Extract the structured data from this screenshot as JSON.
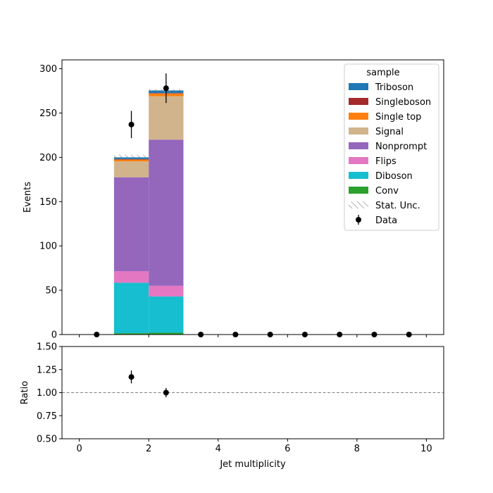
{
  "chart_data": [
    {
      "type": "bar",
      "stacked": true,
      "xlabel": "",
      "ylabel": "Events",
      "xlim": [
        -0.5,
        10.5
      ],
      "ylim": [
        0,
        310
      ],
      "xticks": [
        "0",
        "2",
        "4",
        "6",
        "8",
        "10"
      ],
      "yticks": [
        "0",
        "50",
        "100",
        "150",
        "200",
        "250",
        "300"
      ],
      "bins": [
        [
          1,
          2
        ],
        [
          2,
          3
        ]
      ],
      "series": [
        {
          "name": "Conv",
          "color": "#2ca02c",
          "values": [
            1.5,
            2
          ]
        },
        {
          "name": "Diboson",
          "color": "#17becf",
          "values": [
            57,
            41
          ]
        },
        {
          "name": "Flips",
          "color": "#e377c2",
          "values": [
            13,
            12
          ]
        },
        {
          "name": "Nonprompt",
          "color": "#9467bd",
          "values": [
            106,
            165
          ]
        },
        {
          "name": "Signal",
          "color": "#d2b48c",
          "values": [
            18,
            49
          ]
        },
        {
          "name": "Single top",
          "color": "#ff7f0e",
          "values": [
            2,
            3
          ]
        },
        {
          "name": "Singleboson",
          "color": "#a52a2a",
          "values": [
            0.5,
            0.5
          ]
        },
        {
          "name": "Triboson",
          "color": "#1f77b4",
          "values": [
            2,
            3
          ]
        }
      ],
      "stat_unc": {
        "name": "Stat. Unc.",
        "bins": [
          [
            1,
            2
          ],
          [
            2,
            3
          ]
        ],
        "low": [
          199,
          273
        ],
        "high": [
          203,
          277
        ]
      },
      "data_points": {
        "name": "Data",
        "x": [
          0.5,
          1.5,
          2.5,
          3.5,
          4.5,
          5.5,
          6.5,
          7.5,
          8.5,
          9.5
        ],
        "y": [
          0,
          237,
          278,
          0,
          0,
          0,
          0,
          0,
          0,
          0
        ],
        "yerr": [
          0,
          15.4,
          16.7,
          0,
          0,
          0,
          0,
          0,
          0,
          0
        ]
      },
      "legend": {
        "title": "sample",
        "placement": "top-right"
      }
    },
    {
      "type": "scatter",
      "xlabel": "Jet multiplicity",
      "ylabel": "Ratio",
      "xlim": [
        -0.5,
        10.5
      ],
      "ylim": [
        0.5,
        1.5
      ],
      "xticks": [
        "0",
        "2",
        "4",
        "6",
        "8",
        "10"
      ],
      "yticks": [
        "0.50",
        "0.75",
        "1.00",
        "1.25",
        "1.50"
      ],
      "reference_line": 1.0,
      "x": [
        1.5,
        2.5
      ],
      "y": [
        1.17,
        1.0
      ],
      "yerr": [
        0.07,
        0.05
      ]
    }
  ]
}
